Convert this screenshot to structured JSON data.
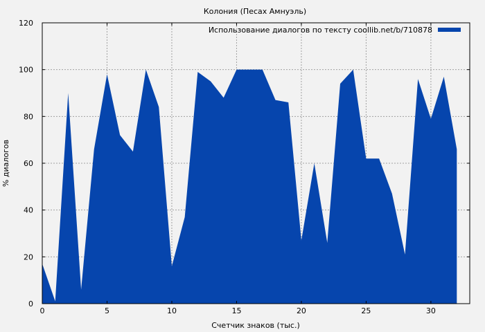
{
  "chart_data": {
    "type": "area",
    "title": "Колония (Песах Амнуэль)",
    "xlabel": "Счетчик знаков (тыс.)",
    "ylabel": "% диалогов",
    "xlim": [
      0,
      33
    ],
    "ylim": [
      0,
      120
    ],
    "xticks": [
      0,
      5,
      10,
      15,
      20,
      25,
      30
    ],
    "yticks": [
      0,
      20,
      40,
      60,
      80,
      100,
      120
    ],
    "grid": true,
    "legend_position": "top-right",
    "series": [
      {
        "name": "Использование диалогов по тексту coollib.net/b/710878",
        "color": "#0645ad",
        "x": [
          0,
          1,
          2,
          3,
          4,
          5,
          6,
          7,
          8,
          9,
          10,
          11,
          12,
          13,
          14,
          15,
          16,
          17,
          18,
          19,
          20,
          21,
          22,
          23,
          24,
          25,
          26,
          27,
          28,
          29,
          30,
          31,
          32
        ],
        "y": [
          17,
          1,
          90,
          6,
          66,
          98,
          72,
          65,
          100,
          84,
          16,
          37,
          99,
          95,
          88,
          100,
          100,
          100,
          87,
          86,
          27,
          60,
          26,
          94,
          100,
          62,
          62,
          47,
          21,
          96,
          79,
          97,
          66
        ]
      }
    ]
  }
}
